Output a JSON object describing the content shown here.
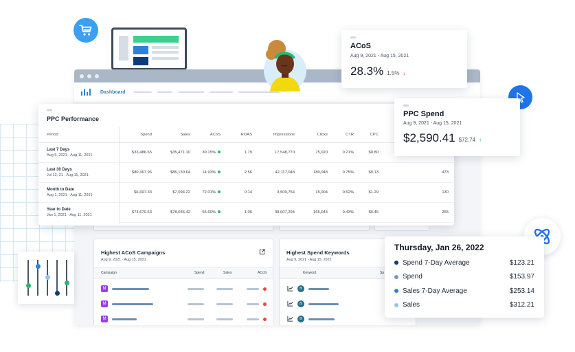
{
  "nav": {
    "dashboard_label": "Dashboard"
  },
  "ppc": {
    "title": "PPC Performance",
    "columns": [
      "Period",
      "Spend",
      "Sales",
      "ACoS",
      "ROAS",
      "Impressions",
      "Clicks",
      "CTR",
      "CPC",
      ""
    ],
    "rows": [
      {
        "name": "Last 7 Days",
        "dates": "Aug 5, 2021 - Aug 11, 2021",
        "spend": "$33,486.65",
        "sales": "$35,471.10",
        "acos": "30.15%",
        "roas": "1.79",
        "impressions": "17,548,770",
        "clicks": "75,020",
        "ctr": "0.21%",
        "cpc": "$0.80",
        "extra": ""
      },
      {
        "name": "Last 30 Days",
        "dates": "Jul 12, 21 - Aug 11, 2021",
        "spend": "$80,367.96",
        "sales": "$85,130.64",
        "acos": "14.93%",
        "roas": "2.56",
        "impressions": "42,117,048",
        "clicks": "180,048",
        "ctr": "0.75%",
        "cpc": "$0.13",
        "extra": "473"
      },
      {
        "name": "Month to Date",
        "dates": "Aug 1, 2021 - Aug 11, 2021",
        "spend": "$6,697.33",
        "sales": "$7,094.22",
        "acos": "72.01%",
        "roas": "0.14",
        "impressions": "3,509,754",
        "clicks": "15,004",
        "ctr": "0.52%",
        "cpc": "$1.29",
        "extra": "130"
      },
      {
        "name": "Year to Date",
        "dates": "Jan 1, 2021 - Aug 11, 2021",
        "spend": "$73,670.63",
        "sales": "$78,036.42",
        "acos": "55.69%",
        "roas": "1.06",
        "impressions": "38,607,294",
        "clicks": "165,044",
        "ctr": "0.43%",
        "cpc": "$0.45",
        "extra": "255"
      }
    ]
  },
  "acos_card": {
    "title": "ACoS",
    "dates": "Aug 9, 2021 - Aug 15, 2021",
    "value": "28.3%",
    "delta": "1.5%",
    "delta_dir": "down"
  },
  "spend_card": {
    "title": "PPC Spend",
    "dates": "Aug 9, 2021 - Aug 15, 2021",
    "value": "$2,590.41",
    "delta": "$72.74",
    "delta_dir": "up"
  },
  "campaigns": {
    "title": "Highest ACoS Campaigns",
    "dates": "Aug 9, 2021 - Aug 15, 2021",
    "columns": [
      "Campaign",
      "Spend",
      "Sales",
      "ACoS"
    ],
    "badge": "M"
  },
  "keywords": {
    "title": "Highest Spend Keywords",
    "dates": "Aug 9, 2021 - Aug 15, 2021",
    "columns": [
      "Keyword",
      "Sp"
    ],
    "badge": "B"
  },
  "tooltip": {
    "title": "Thursday, Jan 26, 2022",
    "items": [
      {
        "name": "Spend 7-Day Average",
        "value": "$123.21",
        "color": "#0e3c78"
      },
      {
        "name": "Spend",
        "value": "$153.97",
        "color": "#7b99b8"
      },
      {
        "name": "Sales 7-Day Average",
        "value": "$253.14",
        "color": "#2e80d9"
      },
      {
        "name": "Sales",
        "value": "$312.21",
        "color": "#8fc3f5"
      }
    ]
  },
  "colors": {
    "accent": "#2e80d9",
    "green": "#2bb573",
    "red": "#e5483f",
    "navy": "#0e3c78",
    "badge_purple": "#9b3ff0",
    "badge_teal": "#1f6f8b"
  },
  "icons": [
    "cart-icon",
    "cursor-icon",
    "brand-logo-icon",
    "external-link-icon",
    "chart-icon",
    "sliders-icon"
  ]
}
